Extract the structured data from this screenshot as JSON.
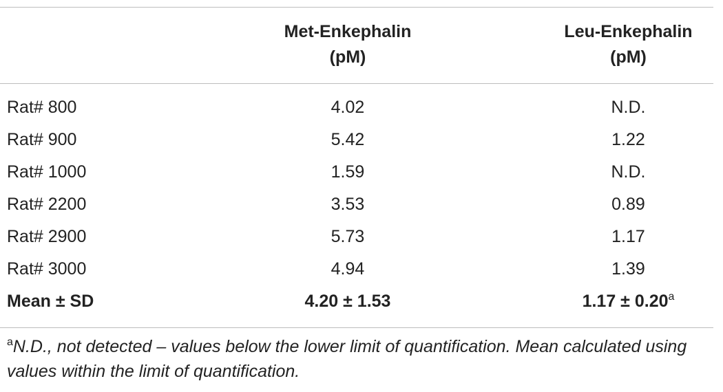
{
  "table": {
    "columns": [
      {
        "line1": "Met-Enkephalin",
        "line2": "(pM)"
      },
      {
        "line1": "Leu-Enkephalin",
        "line2": "(pM)"
      }
    ],
    "rows": [
      {
        "label": "Rat# 800",
        "met": "4.02",
        "leu": "N.D."
      },
      {
        "label": "Rat# 900",
        "met": "5.42",
        "leu": "1.22"
      },
      {
        "label": "Rat# 1000",
        "met": "1.59",
        "leu": "N.D."
      },
      {
        "label": "Rat# 2200",
        "met": "3.53",
        "leu": "0.89"
      },
      {
        "label": "Rat# 2900",
        "met": "5.73",
        "leu": "1.17"
      },
      {
        "label": "Rat# 3000",
        "met": "4.94",
        "leu": "1.39"
      }
    ],
    "summary": {
      "label": "Mean ± SD",
      "met": "4.20 ± 1.53",
      "leu": "1.17 ± 0.20",
      "leu_marker": "a"
    }
  },
  "footnote": {
    "marker": "a",
    "text": "N.D., not detected – values below the lower limit of quantification. Mean calculated using values within the limit of quantification."
  }
}
